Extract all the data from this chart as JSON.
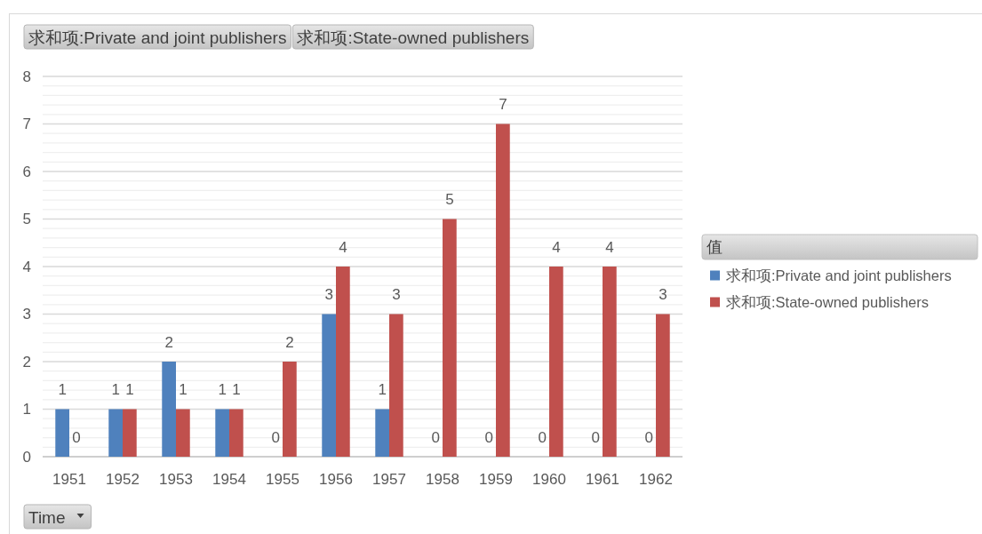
{
  "chart_data": {
    "type": "bar",
    "categories": [
      "1951",
      "1952",
      "1953",
      "1954",
      "1955",
      "1956",
      "1957",
      "1958",
      "1959",
      "1960",
      "1961",
      "1962"
    ],
    "series": [
      {
        "name": "求和项:Private and joint publishers",
        "color": "#4f81bd",
        "values": [
          1,
          1,
          2,
          1,
          0,
          3,
          1,
          0,
          0,
          0,
          0,
          0
        ]
      },
      {
        "name": "求和项:State-owned publishers",
        "color": "#c0504d",
        "values": [
          0,
          1,
          1,
          1,
          2,
          4,
          3,
          5,
          7,
          4,
          4,
          3
        ]
      }
    ],
    "ylim": [
      0,
      8
    ],
    "yticks": [
      0,
      {
        "value": 0.2,
        "label": null
      },
      {
        "value": 0.4,
        "label": null
      },
      {
        "value": 0.6,
        "label": null
      },
      {
        "value": 0.8,
        "label": null
      },
      1,
      {
        "value": 1.2,
        "label": null
      },
      {
        "value": 1.4,
        "label": null
      },
      {
        "value": 1.6,
        "label": null
      },
      {
        "value": 1.8,
        "label": null
      },
      2,
      {
        "value": 2.2,
        "label": null
      },
      {
        "value": 2.4,
        "label": null
      },
      {
        "value": 2.6,
        "label": null
      },
      {
        "value": 2.8,
        "label": null
      },
      3,
      {
        "value": 3.2,
        "label": null
      },
      {
        "value": 3.4,
        "label": null
      },
      {
        "value": 3.6,
        "label": null
      },
      {
        "value": 3.8,
        "label": null
      },
      4,
      {
        "value": 4.2,
        "label": null
      },
      {
        "value": 4.4,
        "label": null
      },
      {
        "value": 4.6,
        "label": null
      },
      {
        "value": 4.8,
        "label": null
      },
      5,
      {
        "value": 5.2,
        "label": null
      },
      {
        "value": 5.4,
        "label": null
      },
      {
        "value": 5.6,
        "label": null
      },
      {
        "value": 5.8,
        "label": null
      },
      6,
      {
        "value": 6.2,
        "label": null
      },
      {
        "value": 6.4,
        "label": null
      },
      {
        "value": 6.6,
        "label": null
      },
      {
        "value": 6.8,
        "label": null
      },
      7,
      {
        "value": 7.2,
        "label": null
      },
      {
        "value": 7.4,
        "label": null
      },
      {
        "value": 7.6,
        "label": null
      },
      {
        "value": 7.8,
        "label": null
      },
      8
    ],
    "grid": "y",
    "data_labels": true,
    "legend": "right",
    "legend_title": "值",
    "xlabel": "Time",
    "annotations": [
      "求和项:Private and joint publishers",
      "求和项:State-owned publishers"
    ]
  }
}
